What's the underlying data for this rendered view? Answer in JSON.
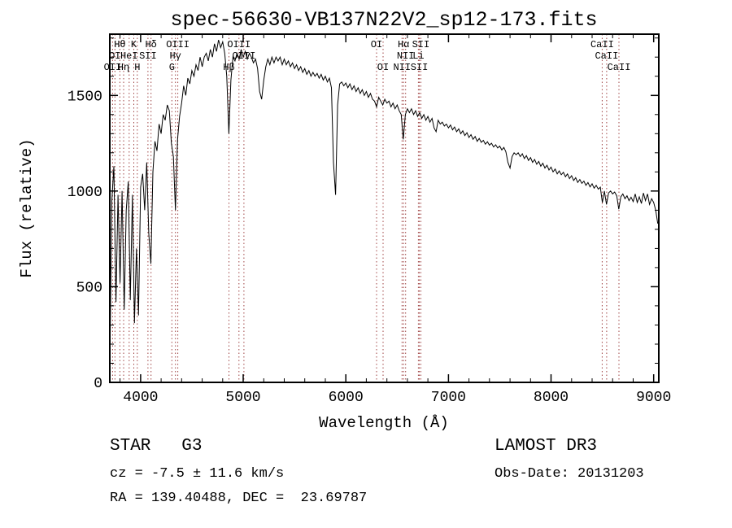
{
  "title": "spec-56630-VB137N22V2_sp12-173.fits",
  "annotations": {
    "class_label": "STAR   G3",
    "survey": "LAMOST DR3",
    "cz": "cz = -7.5 ± 11.6 km/s",
    "obs_date": "Obs-Date: 20131203",
    "ra_dec": "RA = 139.40488, DEC =  23.69787"
  },
  "chart_data": {
    "type": "line",
    "title": "spec-56630-VB137N22V2_sp12-173.fits",
    "xlabel": "Wavelength (Å)",
    "ylabel": "Flux (relative)",
    "xlim": [
      3700,
      9050
    ],
    "ylim": [
      0,
      1820
    ],
    "xticks": [
      4000,
      5000,
      6000,
      7000,
      8000,
      9000
    ],
    "yticks": [
      0,
      500,
      1000,
      1500
    ],
    "x_minor_step": 200,
    "y_minor_step": 100,
    "grid": false,
    "legend": "none",
    "line_color": "#000000",
    "marker_color": "#a04545",
    "spectral_lines": [
      {
        "label": "Hθ",
        "wl": 3798,
        "row": 1
      },
      {
        "label": "OI",
        "wl": 3750,
        "row": 2
      },
      {
        "label": "OII",
        "wl": 3727,
        "row": 3
      },
      {
        "label": "Hη",
        "wl": 3835,
        "row": 3
      },
      {
        "label": "HeI",
        "wl": 3889,
        "row": 2
      },
      {
        "label": "K",
        "wl": 3934,
        "row": 1
      },
      {
        "label": "H",
        "wl": 3968,
        "row": 3
      },
      {
        "label": "SII",
        "wl": 4072,
        "row": 2
      },
      {
        "label": "Hδ",
        "wl": 4102,
        "row": 1
      },
      {
        "label": "G",
        "wl": 4305,
        "row": 3
      },
      {
        "label": "Hγ",
        "wl": 4340,
        "row": 2
      },
      {
        "label": "OIII",
        "wl": 4363,
        "row": 1
      },
      {
        "label": "Hβ",
        "wl": 4861,
        "row": 3
      },
      {
        "label": "OIII",
        "wl": 4959,
        "row": 1
      },
      {
        "label": "OIII",
        "wl": 5007,
        "row": 2
      },
      {
        "label": "OI",
        "wl": 6300,
        "row": 1
      },
      {
        "label": "OI",
        "wl": 6363,
        "row": 3
      },
      {
        "label": "NII",
        "wl": 6548,
        "row": 3
      },
      {
        "label": "Hα",
        "wl": 6563,
        "row": 1
      },
      {
        "label": "NII",
        "wl": 6583,
        "row": 2
      },
      {
        "label": "Li",
        "wl": 6707,
        "row": 2
      },
      {
        "label": "SII",
        "wl": 6716,
        "row": 3
      },
      {
        "label": "SII",
        "wl": 6731,
        "row": 1
      },
      {
        "label": "CaII",
        "wl": 8498,
        "row": 1
      },
      {
        "label": "CaII",
        "wl": 8542,
        "row": 2
      },
      {
        "label": "CaII",
        "wl": 8662,
        "row": 3
      }
    ],
    "spectrum": {
      "x_start": 3700,
      "x_step": 20,
      "flux": [
        80,
        950,
        1130,
        420,
        980,
        520,
        1000,
        380,
        900,
        1050,
        430,
        980,
        310,
        700,
        350,
        1020,
        1090,
        900,
        1150,
        780,
        620,
        1100,
        1260,
        1210,
        1350,
        1300,
        1400,
        1370,
        1450,
        1420,
        1250,
        1180,
        900,
        1270,
        1390,
        1460,
        1550,
        1500,
        1590,
        1560,
        1630,
        1600,
        1660,
        1630,
        1700,
        1650,
        1700,
        1720,
        1680,
        1740,
        1700,
        1770,
        1730,
        1790,
        1750,
        1780,
        1720,
        1600,
        1300,
        1580,
        1700,
        1680,
        1720,
        1690,
        1740,
        1700,
        1730,
        1690,
        1720,
        1700,
        1670,
        1690,
        1640,
        1520,
        1480,
        1580,
        1650,
        1690,
        1660,
        1700,
        1670,
        1700,
        1680,
        1700,
        1660,
        1690,
        1660,
        1680,
        1650,
        1670,
        1640,
        1660,
        1630,
        1650,
        1620,
        1640,
        1610,
        1630,
        1600,
        1620,
        1600,
        1615,
        1590,
        1610,
        1580,
        1600,
        1570,
        1590,
        1540,
        1150,
        980,
        1450,
        1560,
        1570,
        1550,
        1565,
        1540,
        1560,
        1530,
        1550,
        1520,
        1540,
        1510,
        1530,
        1500,
        1520,
        1490,
        1510,
        1480,
        1470,
        1440,
        1490,
        1470,
        1450,
        1480,
        1460,
        1470,
        1440,
        1460,
        1430,
        1450,
        1420,
        1400,
        1270,
        1400,
        1430,
        1410,
        1430,
        1400,
        1420,
        1390,
        1410,
        1380,
        1400,
        1370,
        1390,
        1360,
        1380,
        1330,
        1310,
        1370,
        1350,
        1360,
        1340,
        1350,
        1330,
        1345,
        1320,
        1335,
        1310,
        1325,
        1300,
        1315,
        1290,
        1305,
        1280,
        1295,
        1270,
        1285,
        1260,
        1275,
        1255,
        1265,
        1245,
        1258,
        1240,
        1250,
        1230,
        1242,
        1225,
        1235,
        1215,
        1228,
        1205,
        1150,
        1120,
        1180,
        1200,
        1190,
        1200,
        1180,
        1195,
        1170,
        1185,
        1160,
        1175,
        1150,
        1165,
        1140,
        1155,
        1130,
        1145,
        1120,
        1135,
        1110,
        1125,
        1100,
        1115,
        1090,
        1105,
        1085,
        1098,
        1075,
        1090,
        1065,
        1080,
        1055,
        1070,
        1045,
        1060,
        1040,
        1052,
        1030,
        1045,
        1022,
        1038,
        1015,
        1030,
        1010,
        1020,
        940,
        1000,
        930,
        990,
        1000,
        985,
        995,
        975,
        905,
        970,
        985,
        960,
        975,
        950,
        968,
        945,
        985,
        940,
        970,
        935,
        990,
        950,
        985,
        930,
        960,
        940,
        900,
        830
      ]
    }
  }
}
